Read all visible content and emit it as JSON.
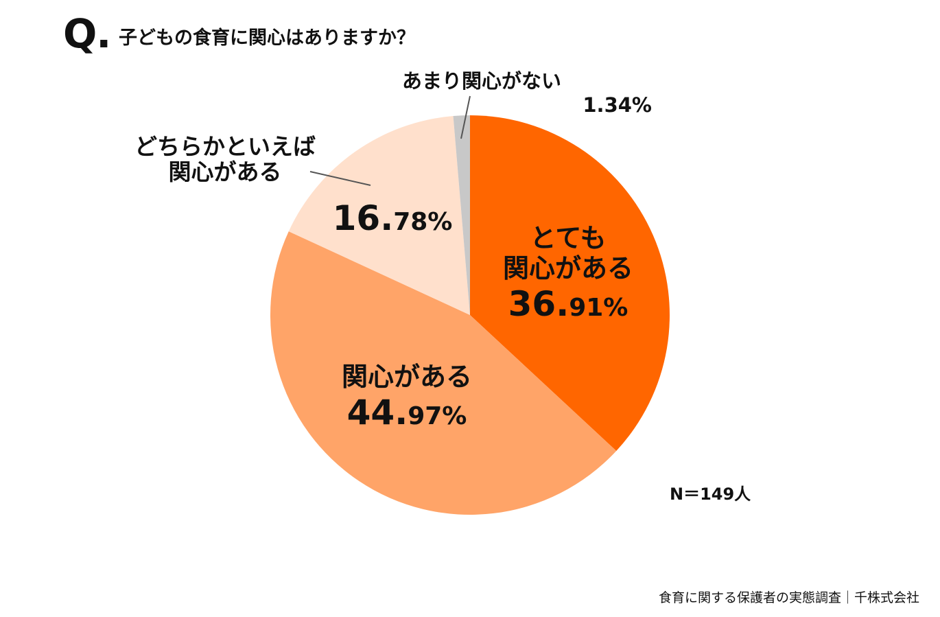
{
  "header": {
    "q_mark": "Q.",
    "question": "子どもの食育に関心はありますか？"
  },
  "sample_size": "N＝149人",
  "source": "食育に関する保護者の実態調査｜千株式会社",
  "chart_data": {
    "type": "pie",
    "start": "12 o'clock, clockwise",
    "slices": [
      {
        "label_lines": [
          "とても",
          "関心がある"
        ],
        "pct_int": "36.",
        "pct_dec": "91%",
        "value": 36.91,
        "color": "#ff6600"
      },
      {
        "label_lines": [
          "関心がある"
        ],
        "pct_int": "44.",
        "pct_dec": "97%",
        "value": 44.97,
        "color": "#ffa468"
      },
      {
        "label_lines": [
          "どちらかといえば",
          "関心がある"
        ],
        "pct_int": "16.",
        "pct_dec": "78%",
        "value": 16.78,
        "color": "#ffe0cc"
      },
      {
        "label_lines": [
          "あまり関心がない"
        ],
        "pct_int": "1.",
        "pct_dec": "34%",
        "value": 1.34,
        "color": "#c8c8c8"
      }
    ]
  }
}
